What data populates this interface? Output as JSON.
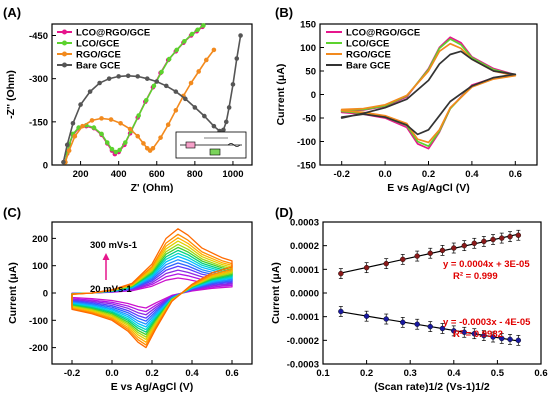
{
  "chart_data": [
    {
      "panel": "(A)",
      "type": "line",
      "title": "",
      "xlabel": "Z' (Ohm)",
      "ylabel": "-Z'' (Ohm)",
      "xlim": [
        50,
        1100
      ],
      "ylim": [
        0,
        490
      ],
      "xticks": [
        200,
        400,
        600,
        800,
        1000
      ],
      "yticks": [
        0,
        150,
        300,
        450
      ],
      "ytick_labels": [
        "0",
        "-150",
        "-300",
        "-450"
      ],
      "grid": false,
      "legend_position": "top-left",
      "series": [
        {
          "name": "LCO@RGO/GCE",
          "color": "#e6168c",
          "marker": "square",
          "x": [
            120,
            130,
            140,
            160,
            190,
            230,
            270,
            310,
            340,
            365,
            380,
            400,
            430,
            460,
            500,
            540,
            580,
            620,
            660,
            700,
            740,
            780,
            810,
            840
          ],
          "y": [
            10,
            40,
            70,
            105,
            128,
            135,
            128,
            105,
            75,
            50,
            38,
            45,
            70,
            110,
            165,
            220,
            270,
            320,
            365,
            395,
            425,
            450,
            465,
            480
          ]
        },
        {
          "name": "LCO/GCE",
          "color": "#5cd22e",
          "marker": "circle",
          "x": [
            120,
            130,
            140,
            160,
            190,
            230,
            270,
            310,
            340,
            365,
            385,
            405,
            435,
            465,
            505,
            545,
            585,
            625,
            665,
            705,
            745,
            785,
            815,
            845
          ],
          "y": [
            10,
            42,
            72,
            108,
            130,
            138,
            130,
            108,
            78,
            55,
            45,
            52,
            78,
            118,
            172,
            225,
            275,
            323,
            368,
            400,
            430,
            455,
            470,
            485
          ]
        },
        {
          "name": "RGO/GCE",
          "color": "#f28a1e",
          "marker": "circle",
          "x": [
            120,
            140,
            170,
            210,
            260,
            310,
            360,
            410,
            460,
            500,
            530,
            550,
            565,
            580,
            620,
            660,
            700,
            740,
            780,
            820,
            860,
            900
          ],
          "y": [
            10,
            50,
            100,
            135,
            155,
            162,
            158,
            145,
            125,
            100,
            75,
            58,
            50,
            58,
            95,
            140,
            190,
            240,
            285,
            325,
            365,
            400
          ]
        },
        {
          "name": "Bare GCE",
          "color": "#555555",
          "marker": "circle",
          "x": [
            110,
            130,
            160,
            200,
            250,
            300,
            350,
            400,
            450,
            500,
            550,
            600,
            650,
            700,
            750,
            800,
            850,
            900,
            930,
            950,
            965,
            980,
            1000,
            1020,
            1040
          ],
          "y": [
            10,
            70,
            145,
            210,
            255,
            285,
            300,
            308,
            310,
            308,
            300,
            290,
            275,
            255,
            230,
            200,
            170,
            135,
            118,
            122,
            150,
            200,
            280,
            370,
            450
          ]
        }
      ]
    },
    {
      "panel": "(B)",
      "type": "line",
      "title": "",
      "xlabel": "E vs Ag/AgCl (V)",
      "ylabel": "Current (μA)",
      "xlim": [
        -0.3,
        0.7
      ],
      "ylim": [
        -150,
        150
      ],
      "xticks": [
        -0.2,
        0.0,
        0.2,
        0.4,
        0.6
      ],
      "xtick_labels": [
        "-0.2",
        "0.0",
        "0.2",
        "0.4",
        "0.6"
      ],
      "yticks": [
        -150,
        -100,
        -50,
        0,
        50,
        100,
        150
      ],
      "grid": false,
      "legend_position": "top-left",
      "series": [
        {
          "name": "LCO@RGO/GCE",
          "color": "#e6168c",
          "x": [
            -0.2,
            -0.1,
            0.0,
            0.1,
            0.2,
            0.25,
            0.3,
            0.35,
            0.4,
            0.5,
            0.6,
            0.5,
            0.4,
            0.3,
            0.25,
            0.2,
            0.15,
            0.1,
            0.0,
            -0.1,
            -0.2
          ],
          "y": [
            -35,
            -33,
            -25,
            -5,
            55,
            100,
            122,
            110,
            80,
            55,
            42,
            35,
            20,
            -30,
            -80,
            -115,
            -105,
            -70,
            -50,
            -42,
            -38
          ]
        },
        {
          "name": "LCO/GCE",
          "color": "#5cd22e",
          "x": [
            -0.2,
            -0.1,
            0.0,
            0.1,
            0.2,
            0.25,
            0.3,
            0.35,
            0.4,
            0.5,
            0.6,
            0.5,
            0.4,
            0.3,
            0.25,
            0.2,
            0.15,
            0.1,
            0.0,
            -0.1,
            -0.2
          ],
          "y": [
            -33,
            -32,
            -24,
            -3,
            53,
            98,
            118,
            106,
            78,
            53,
            41,
            34,
            18,
            -30,
            -78,
            -110,
            -100,
            -66,
            -48,
            -40,
            -36
          ]
        },
        {
          "name": "RGO/GCE",
          "color": "#f28a1e",
          "x": [
            -0.2,
            -0.1,
            0.0,
            0.1,
            0.2,
            0.25,
            0.3,
            0.35,
            0.4,
            0.5,
            0.6,
            0.5,
            0.4,
            0.3,
            0.25,
            0.2,
            0.15,
            0.1,
            0.0,
            -0.1,
            -0.2
          ],
          "y": [
            -32,
            -30,
            -22,
            -2,
            50,
            92,
            108,
            98,
            75,
            50,
            40,
            33,
            16,
            -28,
            -75,
            -102,
            -95,
            -62,
            -45,
            -38,
            -34
          ]
        },
        {
          "name": "Bare GCE",
          "color": "#333333",
          "x": [
            -0.2,
            -0.1,
            0.0,
            0.1,
            0.2,
            0.25,
            0.3,
            0.35,
            0.4,
            0.5,
            0.6,
            0.5,
            0.4,
            0.3,
            0.25,
            0.2,
            0.15,
            0.1,
            0.0,
            -0.1,
            -0.2
          ],
          "y": [
            -50,
            -40,
            -28,
            -10,
            30,
            65,
            85,
            92,
            75,
            50,
            43,
            36,
            18,
            -15,
            -45,
            -75,
            -85,
            -65,
            -48,
            -42,
            -48
          ]
        }
      ]
    },
    {
      "panel": "(C)",
      "type": "line",
      "title": "",
      "xlabel": "E vs Ag/AgCl (V)",
      "ylabel": "Current (μA)",
      "xlim": [
        -0.3,
        0.7
      ],
      "ylim": [
        -260,
        260
      ],
      "xticks": [
        -0.2,
        0.0,
        0.2,
        0.4,
        0.6
      ],
      "xtick_labels": [
        "-0.2",
        "0.0",
        "0.2",
        "0.4",
        "0.6"
      ],
      "yticks": [
        -200,
        -100,
        0,
        100,
        200
      ],
      "grid": false,
      "annotations": [
        "300 mVs-1",
        "20 mVs-1"
      ],
      "scan_rates": [
        20,
        40,
        60,
        80,
        100,
        120,
        140,
        160,
        180,
        200,
        220,
        240,
        260,
        280,
        300
      ],
      "peak_anodic": [
        55,
        70,
        84,
        98,
        110,
        122,
        134,
        145,
        156,
        167,
        178,
        190,
        202,
        215,
        235
      ],
      "peak_cathodic": [
        -55,
        -68,
        -80,
        -92,
        -103,
        -114,
        -124,
        -134,
        -143,
        -152,
        -161,
        -170,
        -180,
        -190,
        -200
      ],
      "colors": [
        "#cc11cc",
        "#b015e8",
        "#8a2be2",
        "#5a3cff",
        "#2e63ff",
        "#1e90ff",
        "#00bfff",
        "#00d5c8",
        "#00d080",
        "#40d030",
        "#a0d814",
        "#e0d000",
        "#ffb000",
        "#ff8c00",
        "#ff6a00"
      ]
    },
    {
      "panel": "(D)",
      "type": "scatter",
      "title": "",
      "xlabel": "(Scan rate)1/2 (Vs-1)1/2",
      "ylabel": "Current (μA)",
      "xlim": [
        0.1,
        0.6
      ],
      "ylim": [
        -0.0003,
        0.0003
      ],
      "xticks": [
        0.1,
        0.2,
        0.3,
        0.4,
        0.5,
        0.6
      ],
      "xtick_labels": [
        "0.1",
        "0.2",
        "0.3",
        "0.4",
        "0.5",
        "0.6"
      ],
      "yticks": [
        -0.0003,
        -0.0002,
        -0.0001,
        0,
        0.0001,
        0.0002,
        0.0003
      ],
      "ytick_labels": [
        "-0.0003",
        "-0.0002",
        "-0.0001",
        "0.0000",
        "0.0001",
        "0.0002",
        "0.0003"
      ],
      "grid": false,
      "series": [
        {
          "name": "anodic",
          "color": "#8b1a1a",
          "x": [
            0.141,
            0.2,
            0.245,
            0.283,
            0.316,
            0.346,
            0.374,
            0.4,
            0.424,
            0.447,
            0.469,
            0.49,
            0.51,
            0.529,
            0.548
          ],
          "y": [
            8.2e-05,
            0.000107,
            0.000124,
            0.000142,
            0.000156,
            0.000168,
            0.00018,
            0.00019,
            0.0002,
            0.00021,
            0.000218,
            0.000226,
            0.000232,
            0.000238,
            0.000244
          ],
          "fit_equation": "y = 0.0004x + 3E-05",
          "r2": "R² = 0.999",
          "fit_color": "#e00000"
        },
        {
          "name": "cathodic",
          "color": "#1a1aa0",
          "x": [
            0.141,
            0.2,
            0.245,
            0.283,
            0.316,
            0.346,
            0.374,
            0.4,
            0.424,
            0.447,
            0.469,
            0.49,
            0.51,
            0.529,
            0.548
          ],
          "y": [
            -7.8e-05,
            -9.8e-05,
            -0.00011,
            -0.000124,
            -0.000132,
            -0.000142,
            -0.00015,
            -0.00016,
            -0.000166,
            -0.000172,
            -0.00018,
            -0.000186,
            -0.000192,
            -0.000196,
            -0.0002
          ],
          "fit_equation": "y = -0.0003x - 4E-05",
          "r2": "R² = 0.9982",
          "fit_color": "#e00000"
        }
      ]
    }
  ]
}
